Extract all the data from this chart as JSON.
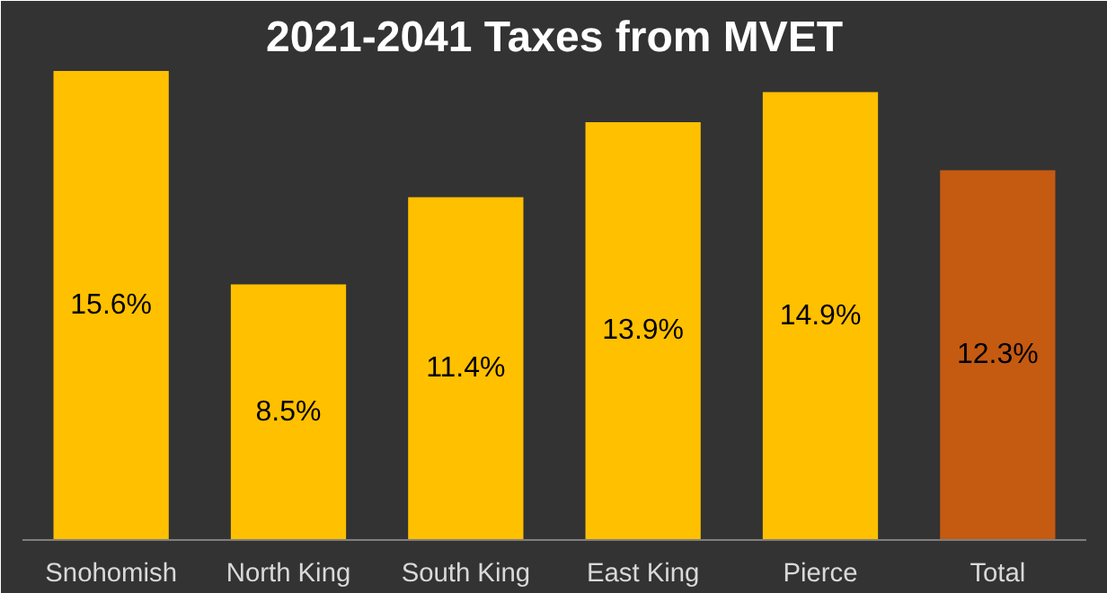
{
  "chart_data": {
    "type": "bar",
    "title": "2021-2041 Taxes from MVET",
    "categories": [
      "Snohomish",
      "North King",
      "South King",
      "East King",
      "Pierce",
      "Total"
    ],
    "values": [
      15.6,
      8.5,
      11.4,
      13.9,
      14.9,
      12.3
    ],
    "colors": [
      "#ffc000",
      "#ffc000",
      "#ffc000",
      "#ffc000",
      "#ffc000",
      "#c55a11"
    ],
    "value_labels": [
      "15.6%",
      "8.5%",
      "11.4%",
      "13.9%",
      "14.9%",
      "12.3%"
    ]
  }
}
